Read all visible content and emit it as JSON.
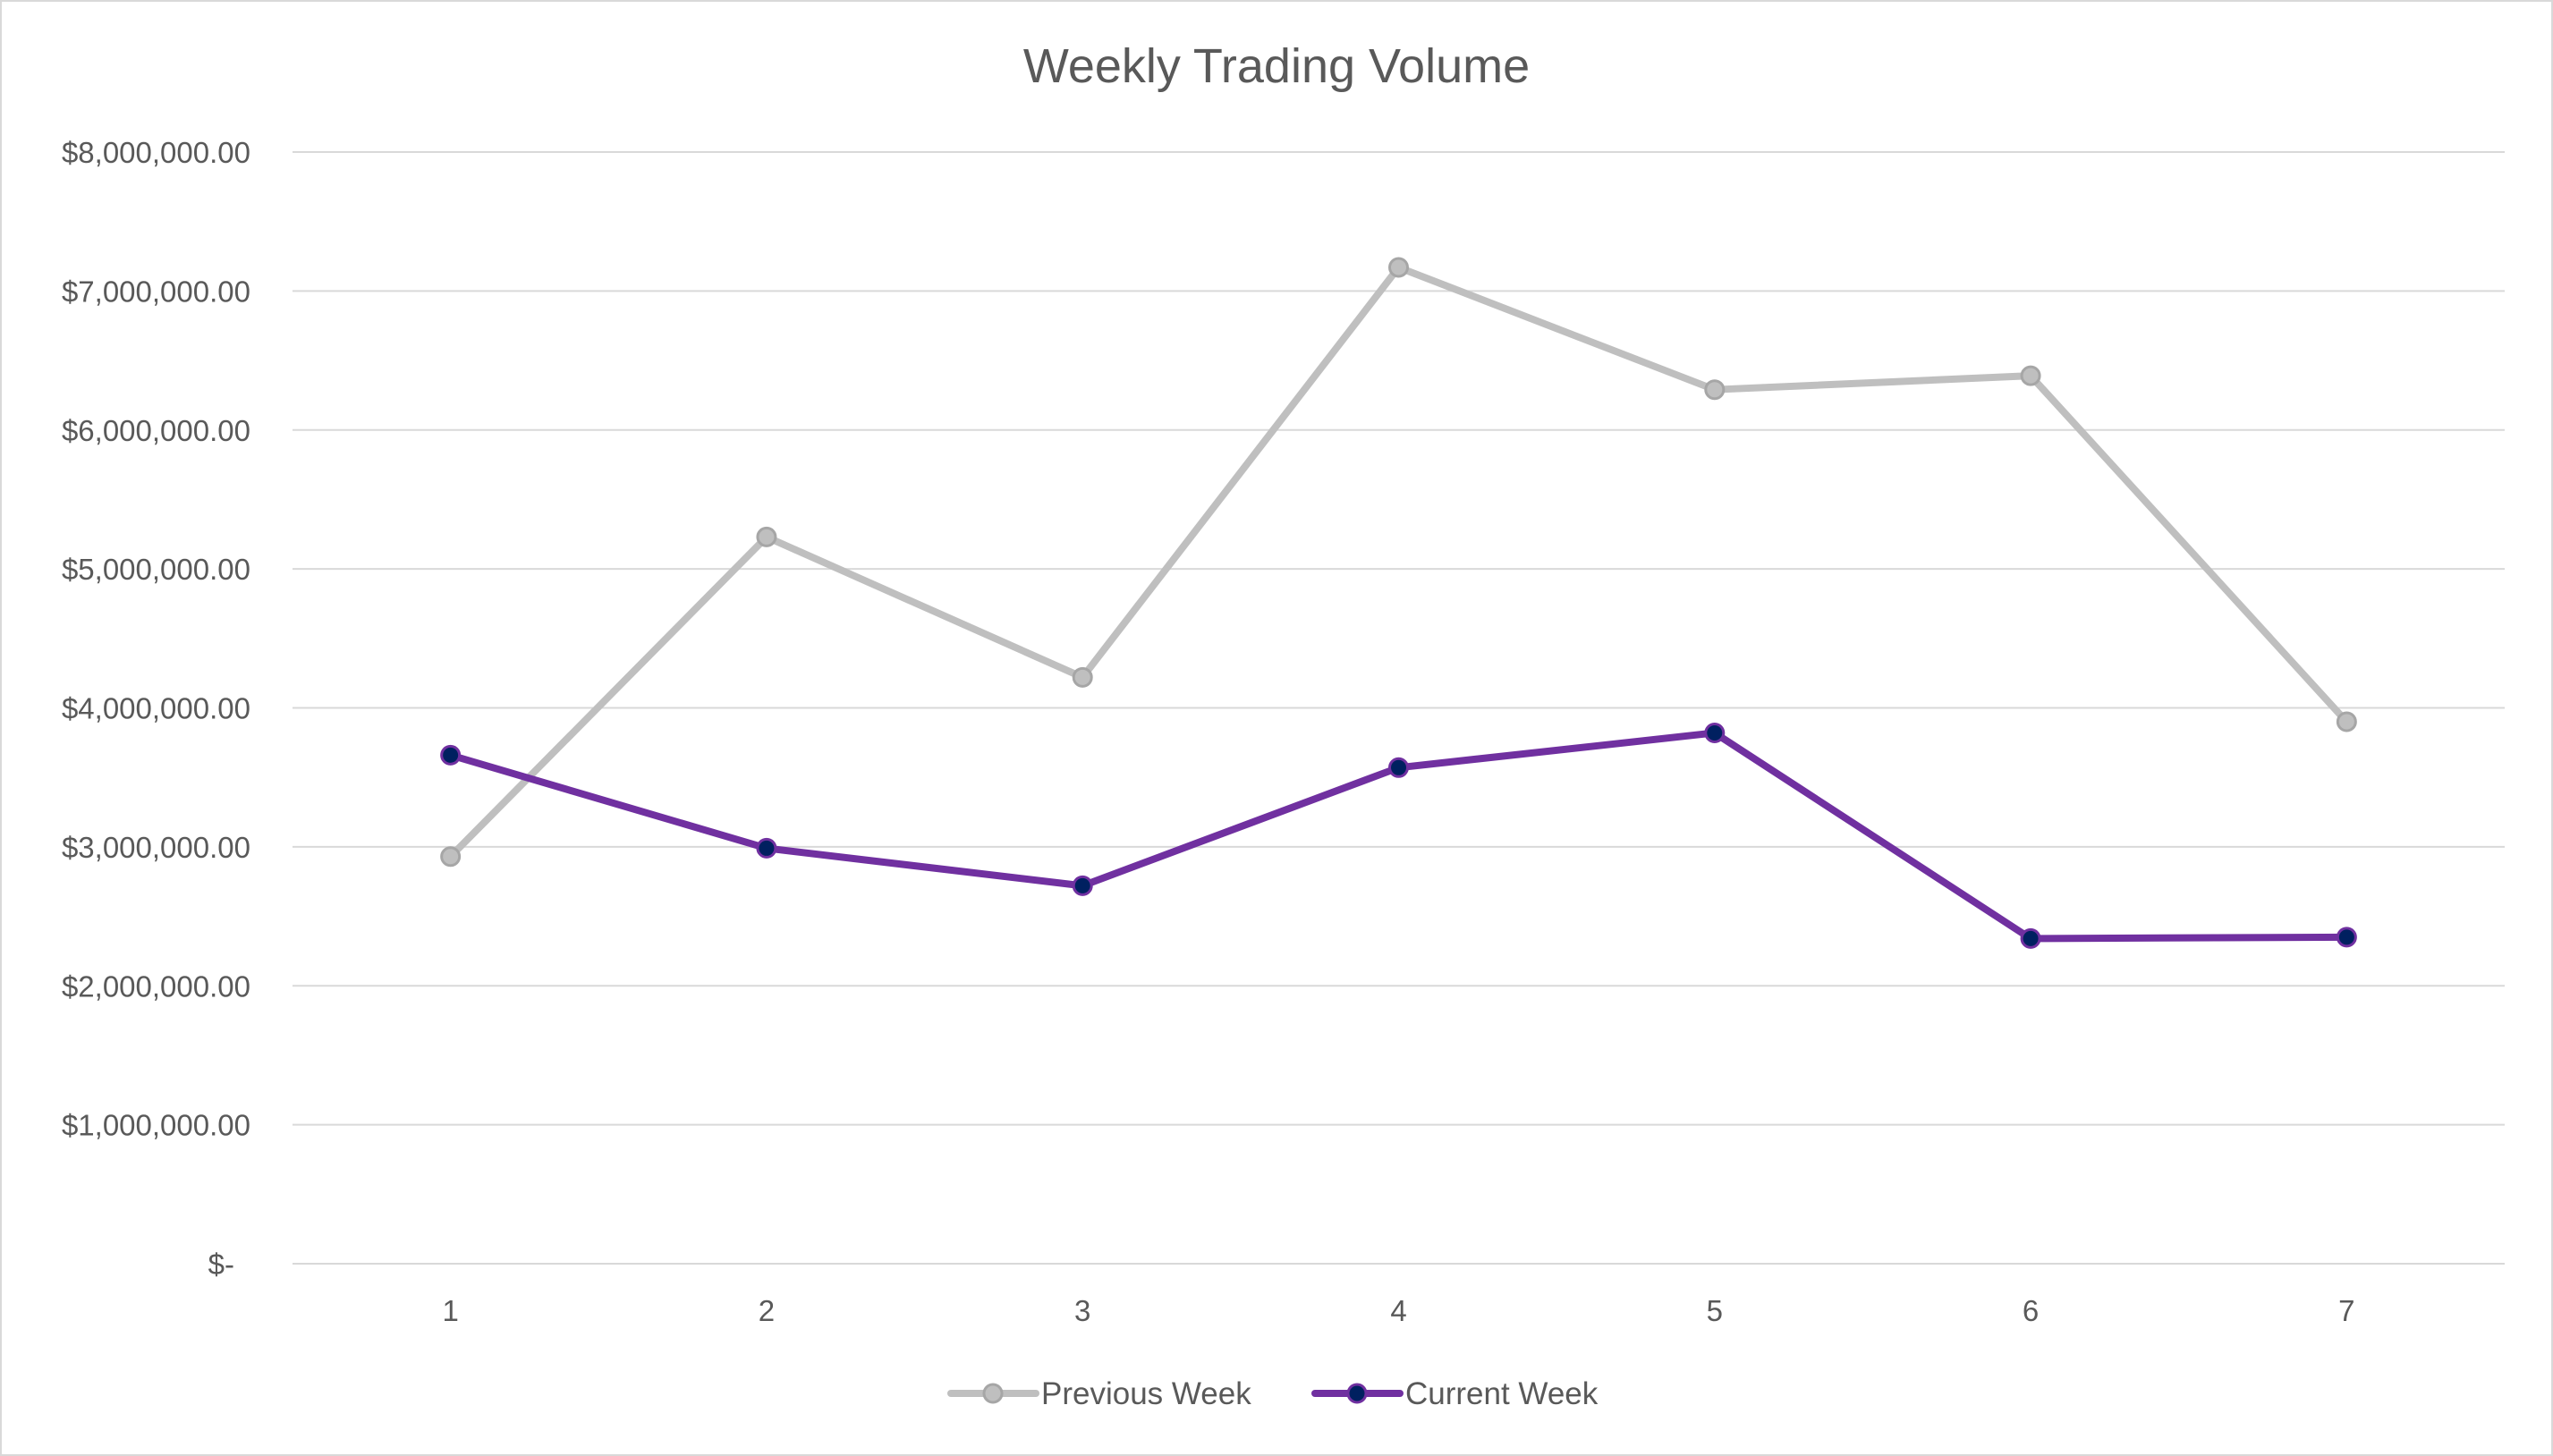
{
  "chart_data": {
    "type": "line",
    "title": "Weekly Trading Volume",
    "xlabel": "",
    "ylabel": "",
    "categories": [
      "1",
      "2",
      "3",
      "4",
      "5",
      "6",
      "7"
    ],
    "ylim": [
      0,
      8000000
    ],
    "y_ticks": [
      0,
      1000000,
      2000000,
      3000000,
      4000000,
      5000000,
      6000000,
      7000000,
      8000000
    ],
    "y_tick_labels": [
      "$-",
      "$1,000,000.00",
      "$2,000,000.00",
      "$3,000,000.00",
      "$4,000,000.00",
      "$5,000,000.00",
      "$6,000,000.00",
      "$7,000,000.00",
      "$8,000,000.00"
    ],
    "grid": true,
    "legend_position": "bottom",
    "series": [
      {
        "name": "Previous Week",
        "color": "#bfbfbf",
        "marker_fill": "#bfbfbf",
        "marker_stroke": "#a6a6a6",
        "values": [
          2930000,
          5230000,
          4220000,
          7170000,
          6290000,
          6390000,
          3900000
        ]
      },
      {
        "name": "Current Week",
        "color": "#7030a0",
        "marker_fill": "#002060",
        "marker_stroke": "#7030a0",
        "values": [
          3660000,
          2990000,
          2720000,
          3570000,
          3820000,
          2340000,
          2350000
        ]
      }
    ]
  }
}
